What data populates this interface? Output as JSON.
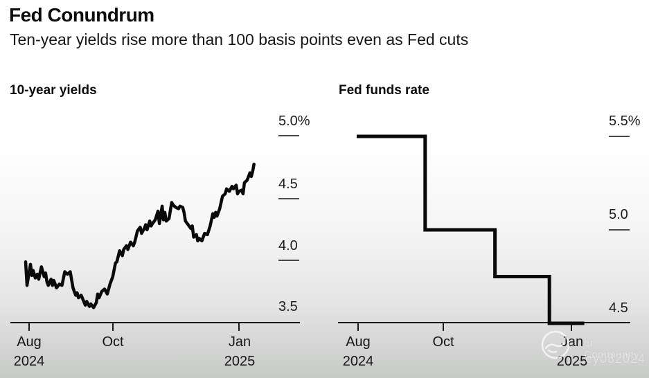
{
  "page": {
    "title": "Fed Conundrum",
    "subtitle": "Ten-year yields rise more than 100 basis points even as Fed cuts",
    "line_color": "#0a0a0a",
    "axis_color": "#1a1a1a",
    "background_top": "#ffffff",
    "background_bottom": "#c8cac8"
  },
  "watermark": {
    "logo_icon": "circle-swirl-logo",
    "line1": "er Community",
    "line2": "ey082024"
  },
  "chart_data": [
    {
      "type": "line",
      "title": "10-year yields",
      "unit": "percent",
      "x_start_date": "2024-08-01",
      "ylim": [
        3.5,
        5.0
      ],
      "grid": false,
      "legend": "none",
      "y_ticks": [
        {
          "label": "5.0%",
          "value": 5.0
        },
        {
          "label": "4.5",
          "value": 4.5
        },
        {
          "label": "4.0",
          "value": 4.0
        },
        {
          "label": "3.5",
          "value": 3.5
        }
      ],
      "x_ticks": [
        {
          "label": "Aug\n2024",
          "day": 0
        },
        {
          "label": "Oct",
          "day": 61
        },
        {
          "label": "Jan\n2025",
          "day": 153
        }
      ],
      "points": [
        [
          -2.5,
          3.98
        ],
        [
          -1.5,
          3.79
        ],
        [
          1,
          3.96
        ],
        [
          2,
          3.87
        ],
        [
          3,
          3.91
        ],
        [
          4.5,
          3.85
        ],
        [
          6,
          3.88
        ],
        [
          7,
          3.84
        ],
        [
          9,
          3.94
        ],
        [
          11,
          3.86
        ],
        [
          12,
          3.89
        ],
        [
          13,
          3.82
        ],
        [
          14,
          3.79
        ],
        [
          16,
          3.84
        ],
        [
          17,
          3.79
        ],
        [
          18,
          3.83
        ],
        [
          20,
          3.77
        ],
        [
          22,
          3.8
        ],
        [
          24,
          3.79
        ],
        [
          26,
          3.9
        ],
        [
          28,
          3.88
        ],
        [
          30,
          3.9
        ],
        [
          32,
          3.77
        ],
        [
          34,
          3.71
        ],
        [
          35,
          3.73
        ],
        [
          36,
          3.69
        ],
        [
          38,
          3.71
        ],
        [
          41,
          3.63
        ],
        [
          42,
          3.66
        ],
        [
          44,
          3.62
        ],
        [
          45,
          3.64
        ],
        [
          47,
          3.61
        ],
        [
          49,
          3.65
        ],
        [
          50,
          3.72
        ],
        [
          51,
          3.69
        ],
        [
          53,
          3.74
        ],
        [
          55,
          3.76
        ],
        [
          57,
          3.72
        ],
        [
          59,
          3.8
        ],
        [
          61,
          3.86
        ],
        [
          63,
          3.97
        ],
        [
          64,
          3.98
        ],
        [
          66,
          4.07
        ],
        [
          68,
          4.03
        ],
        [
          69,
          4.08
        ],
        [
          71,
          4.11
        ],
        [
          72,
          4.08
        ],
        [
          74,
          4.14
        ],
        [
          76,
          4.11
        ],
        [
          77,
          4.14
        ],
        [
          79,
          4.23
        ],
        [
          81,
          4.26
        ],
        [
          82,
          4.21
        ],
        [
          84,
          4.25
        ],
        [
          85,
          4.28
        ],
        [
          86,
          4.24
        ],
        [
          88,
          4.31
        ],
        [
          89,
          4.27
        ],
        [
          90,
          4.29
        ],
        [
          92,
          4.32
        ],
        [
          94,
          4.39
        ],
        [
          95,
          4.29
        ],
        [
          97,
          4.43
        ],
        [
          98,
          4.32
        ],
        [
          99,
          4.38
        ],
        [
          100,
          4.31
        ],
        [
          102,
          4.33
        ],
        [
          104,
          4.46
        ],
        [
          105,
          4.44
        ],
        [
          107,
          4.42
        ],
        [
          109,
          4.41
        ],
        [
          110,
          4.43
        ],
        [
          112,
          4.42
        ],
        [
          113,
          4.38
        ],
        [
          114,
          4.31
        ],
        [
          116,
          4.28
        ],
        [
          118,
          4.25
        ],
        [
          119,
          4.27
        ],
        [
          120,
          4.18
        ],
        [
          122,
          4.2
        ],
        [
          123,
          4.15
        ],
        [
          124,
          4.17
        ],
        [
          126,
          4.15
        ],
        [
          128,
          4.21
        ],
        [
          130,
          4.2
        ],
        [
          132,
          4.27
        ],
        [
          134,
          4.37
        ],
        [
          135,
          4.34
        ],
        [
          136,
          4.38
        ],
        [
          137,
          4.35
        ],
        [
          139,
          4.41
        ],
        [
          140,
          4.46
        ],
        [
          141,
          4.51
        ],
        [
          143,
          4.53
        ],
        [
          144,
          4.57
        ],
        [
          146,
          4.55
        ],
        [
          148,
          4.59
        ],
        [
          149,
          4.57
        ],
        [
          151,
          4.6
        ],
        [
          152,
          4.53
        ],
        [
          153,
          4.55
        ],
        [
          155,
          4.56
        ],
        [
          156,
          4.53
        ],
        [
          157,
          4.62
        ],
        [
          159,
          4.64
        ],
        [
          160,
          4.67
        ],
        [
          161,
          4.7
        ],
        [
          162,
          4.67
        ],
        [
          163,
          4.71
        ],
        [
          164,
          4.77
        ]
      ]
    },
    {
      "type": "step-line",
      "title": "Fed funds rate",
      "unit": "percent",
      "x_start_date": "2024-08-01",
      "ylim": [
        4.5,
        5.5
      ],
      "grid": false,
      "legend": "none",
      "y_ticks": [
        {
          "label": "5.5%",
          "value": 5.5
        },
        {
          "label": "5.0",
          "value": 5.0
        },
        {
          "label": "4.5",
          "value": 4.5
        }
      ],
      "x_ticks": [
        {
          "label": "Aug\n2024",
          "day": 0
        },
        {
          "label": "Oct",
          "day": 61
        },
        {
          "label": "Jan\n2025",
          "day": 153
        }
      ],
      "points": [
        [
          -1,
          5.5
        ],
        [
          48,
          5.5
        ],
        [
          48,
          5.0
        ],
        [
          98,
          5.0
        ],
        [
          98,
          4.75
        ],
        [
          137,
          4.75
        ],
        [
          137,
          4.5
        ],
        [
          162,
          4.5
        ]
      ]
    }
  ]
}
